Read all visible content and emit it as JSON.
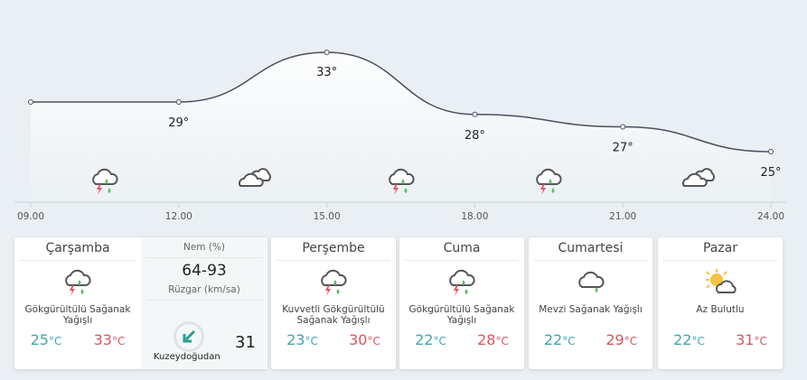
{
  "chart_data": {
    "type": "line",
    "x": [
      "09.00",
      "12.00",
      "15.00",
      "18.00",
      "21.00",
      "24.00"
    ],
    "values": [
      29,
      29,
      33,
      28,
      27,
      25
    ],
    "labels": [
      "",
      "29°",
      "33°",
      "28°",
      "27°",
      "25°"
    ],
    "icons": [
      "thunderstorm-rain",
      "cloudy",
      "thunderstorm-rain",
      "thunderstorm-rain",
      "cloudy"
    ],
    "line_color": "#4a5060"
  },
  "days": [
    {
      "name": "Çarşamba",
      "desc": "Gökgürültülü Sağanak Yağışlı",
      "low": "25",
      "high": "33",
      "unit": "°C",
      "icon": "thunderstorm-rain"
    },
    {
      "name": "Perşembe",
      "desc": "Kuvvetli Gökgürültülü Sağanak Yağışlı",
      "low": "23",
      "high": "30",
      "unit": "°C",
      "icon": "thunderstorm-rain"
    },
    {
      "name": "Cuma",
      "desc": "Gökgürültülü Sağanak Yağışlı",
      "low": "22",
      "high": "28",
      "unit": "°C",
      "icon": "thunderstorm-rain"
    },
    {
      "name": "Cumartesi",
      "desc": "Mevzi Sağanak Yağışlı",
      "low": "22",
      "high": "29",
      "unit": "°C",
      "icon": "cloud-rain"
    },
    {
      "name": "Pazar",
      "desc": "Az Bulutlu",
      "low": "22",
      "high": "31",
      "unit": "°C",
      "icon": "partly-sunny"
    }
  ],
  "detail": {
    "humidity_label": "Nem (%)",
    "humidity": "64-93",
    "wind_label": "Rüzgar (km/sa)",
    "wind_speed": "31",
    "wind_dir": "Kuzeydoğudan"
  }
}
